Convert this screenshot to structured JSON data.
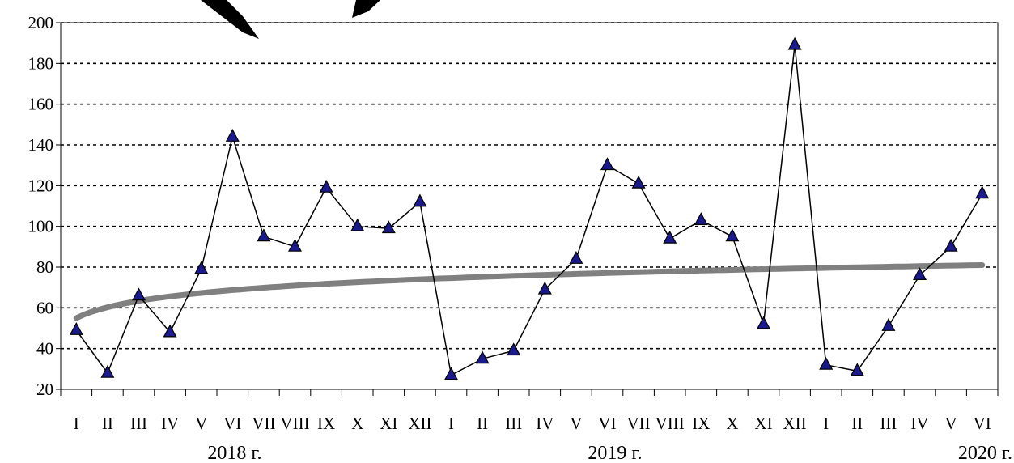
{
  "chart_data": {
    "type": "line",
    "title": "",
    "xlabel": "",
    "ylabel": "",
    "ylim": [
      20,
      200
    ],
    "yticks": [
      20,
      40,
      60,
      80,
      100,
      120,
      140,
      160,
      180,
      200
    ],
    "grid": "horizontal dotted",
    "categories": [
      "I",
      "II",
      "III",
      "IV",
      "V",
      "VI",
      "VII",
      "VIII",
      "IX",
      "X",
      "XI",
      "XII",
      "I",
      "II",
      "III",
      "IV",
      "V",
      "VI",
      "VII",
      "VIII",
      "IX",
      "X",
      "XI",
      "XII",
      "I",
      "II",
      "III",
      "IV",
      "V",
      "VI"
    ],
    "category_labels": [
      "I",
      "II",
      "III",
      "IV",
      "V",
      "VI",
      "VII",
      "VIII",
      "IX",
      "X",
      "XI",
      "XII",
      "I",
      "II",
      "III",
      "IV",
      "V",
      "VI",
      "VII",
      "VIII",
      "IX",
      "X",
      "XI",
      "XII",
      "I",
      "II",
      "III",
      "IV",
      "V",
      "VI"
    ],
    "year_labels": [
      "2018 г.",
      "2019 г.",
      "2020 г."
    ],
    "series": [
      {
        "values": [
          49,
          28,
          66,
          48,
          79,
          144,
          95,
          90,
          119,
          100,
          99,
          112,
          27,
          35,
          39,
          69,
          84,
          130,
          121,
          94,
          103,
          95,
          52,
          189,
          32,
          29,
          51,
          76,
          90,
          116
        ],
        "color": "#000000",
        "marker": "triangle",
        "marker_color": "#1a1a8c"
      }
    ],
    "trend": {
      "type": "logarithmic",
      "start": 55,
      "end": 81,
      "color": "#808080"
    }
  }
}
